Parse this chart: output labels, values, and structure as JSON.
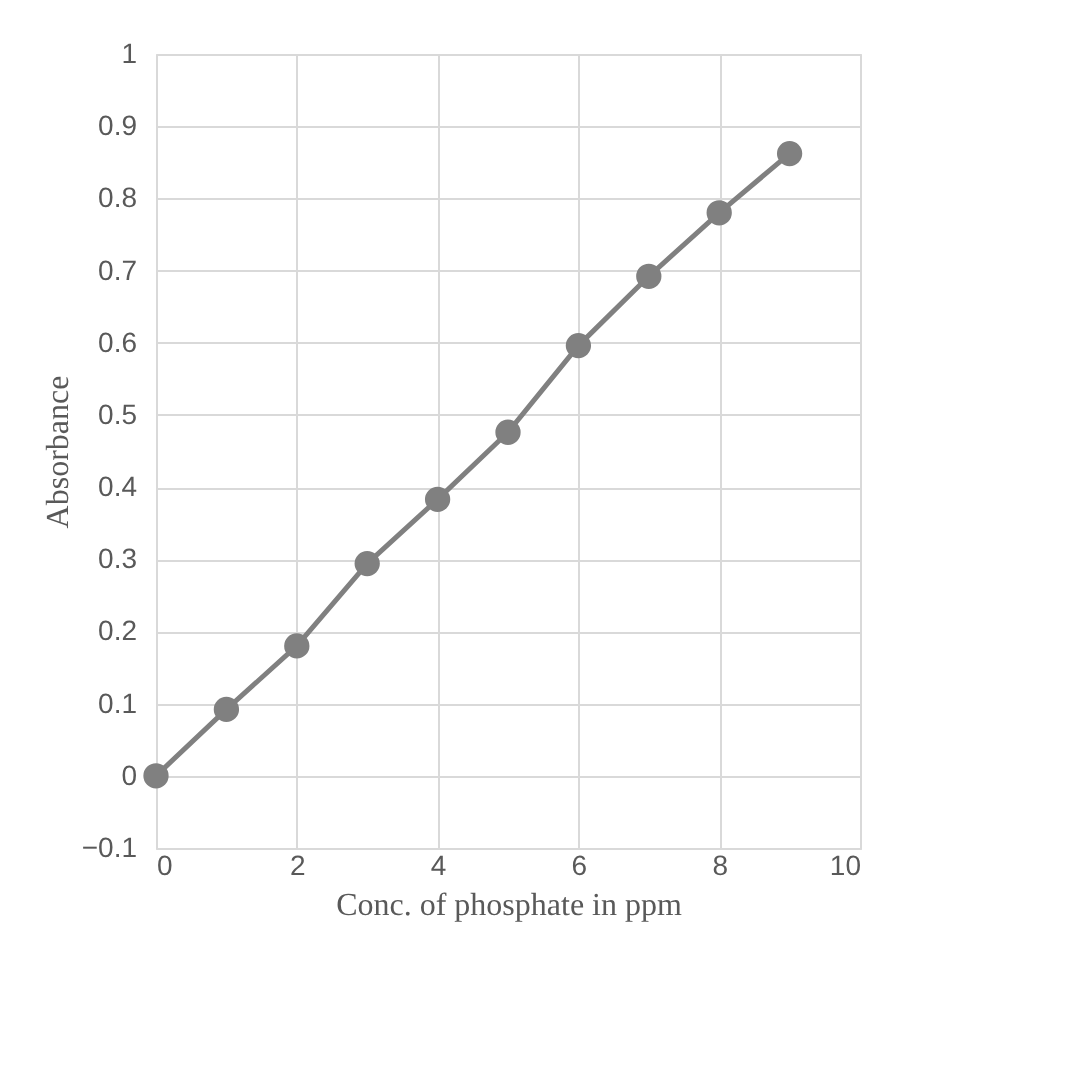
{
  "chart_data": {
    "type": "line",
    "xlabel": "Conc. of phosphate in ppm",
    "ylabel": "Absorbance",
    "x": [
      0,
      1,
      2,
      3,
      4,
      5,
      6,
      7,
      8,
      9
    ],
    "series": [
      {
        "color": "#808080",
        "values": [
          0,
          0.092,
          0.18,
          0.294,
          0.383,
          0.476,
          0.596,
          0.692,
          0.78,
          0.862
        ]
      }
    ],
    "xlim": [
      0,
      10
    ],
    "xticks": [
      0,
      2,
      4,
      6,
      8,
      10
    ],
    "ylim": [
      -0.1,
      1
    ],
    "yticks": [
      -0.1,
      0,
      0.1,
      0.2,
      0.3,
      0.4,
      0.5,
      0.6,
      0.7,
      0.8,
      0.9,
      1
    ],
    "grid": true,
    "marker": "circle",
    "line_style": "solid"
  }
}
